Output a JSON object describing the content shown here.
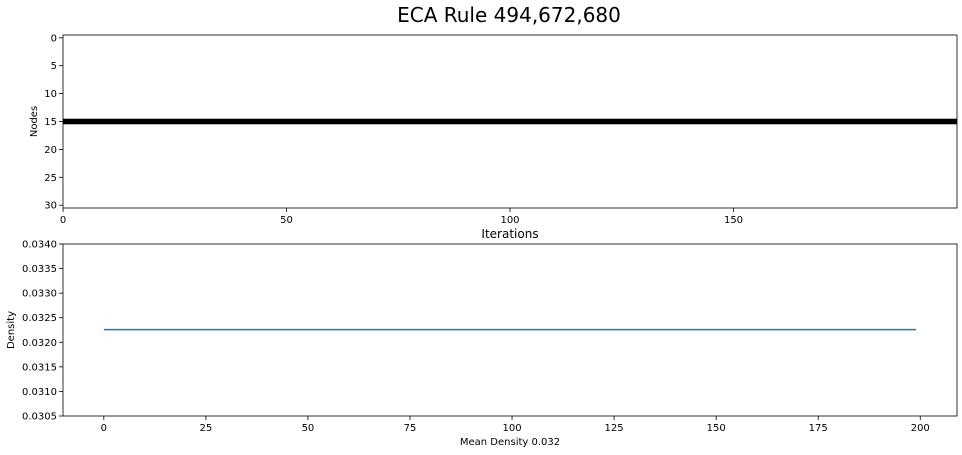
{
  "figure": {
    "title": "ECA Rule 494,672,680"
  },
  "chart_data": [
    {
      "type": "heatmap",
      "title": "",
      "xlabel": "Iterations",
      "ylabel": "Nodes",
      "xlim": [
        0,
        200
      ],
      "ylim": [
        30.5,
        -0.5
      ],
      "xticks": [
        0,
        50,
        100,
        150
      ],
      "yticks": [
        0,
        5,
        10,
        15,
        20,
        25,
        30
      ],
      "num_nodes": 31,
      "num_iterations": 200,
      "active_rows": [
        15
      ],
      "colors": {
        "on": "#000000",
        "off": "#ffffff"
      },
      "grid": false
    },
    {
      "type": "line",
      "title": "",
      "xlabel": "Mean Density 0.032",
      "ylabel": "Density",
      "xlim": [
        -10,
        209
      ],
      "ylim": [
        0.0305,
        0.034
      ],
      "xticks": [
        0,
        25,
        50,
        75,
        100,
        125,
        150,
        175,
        200
      ],
      "yticks": [
        "0.0305",
        "0.0310",
        "0.0315",
        "0.0320",
        "0.0325",
        "0.0330",
        "0.0335",
        "0.0340"
      ],
      "series": [
        {
          "x": [
            0,
            199
          ],
          "values": [
            0.032258,
            0.032258
          ],
          "color": "#1f77b4"
        }
      ],
      "grid": false
    }
  ]
}
